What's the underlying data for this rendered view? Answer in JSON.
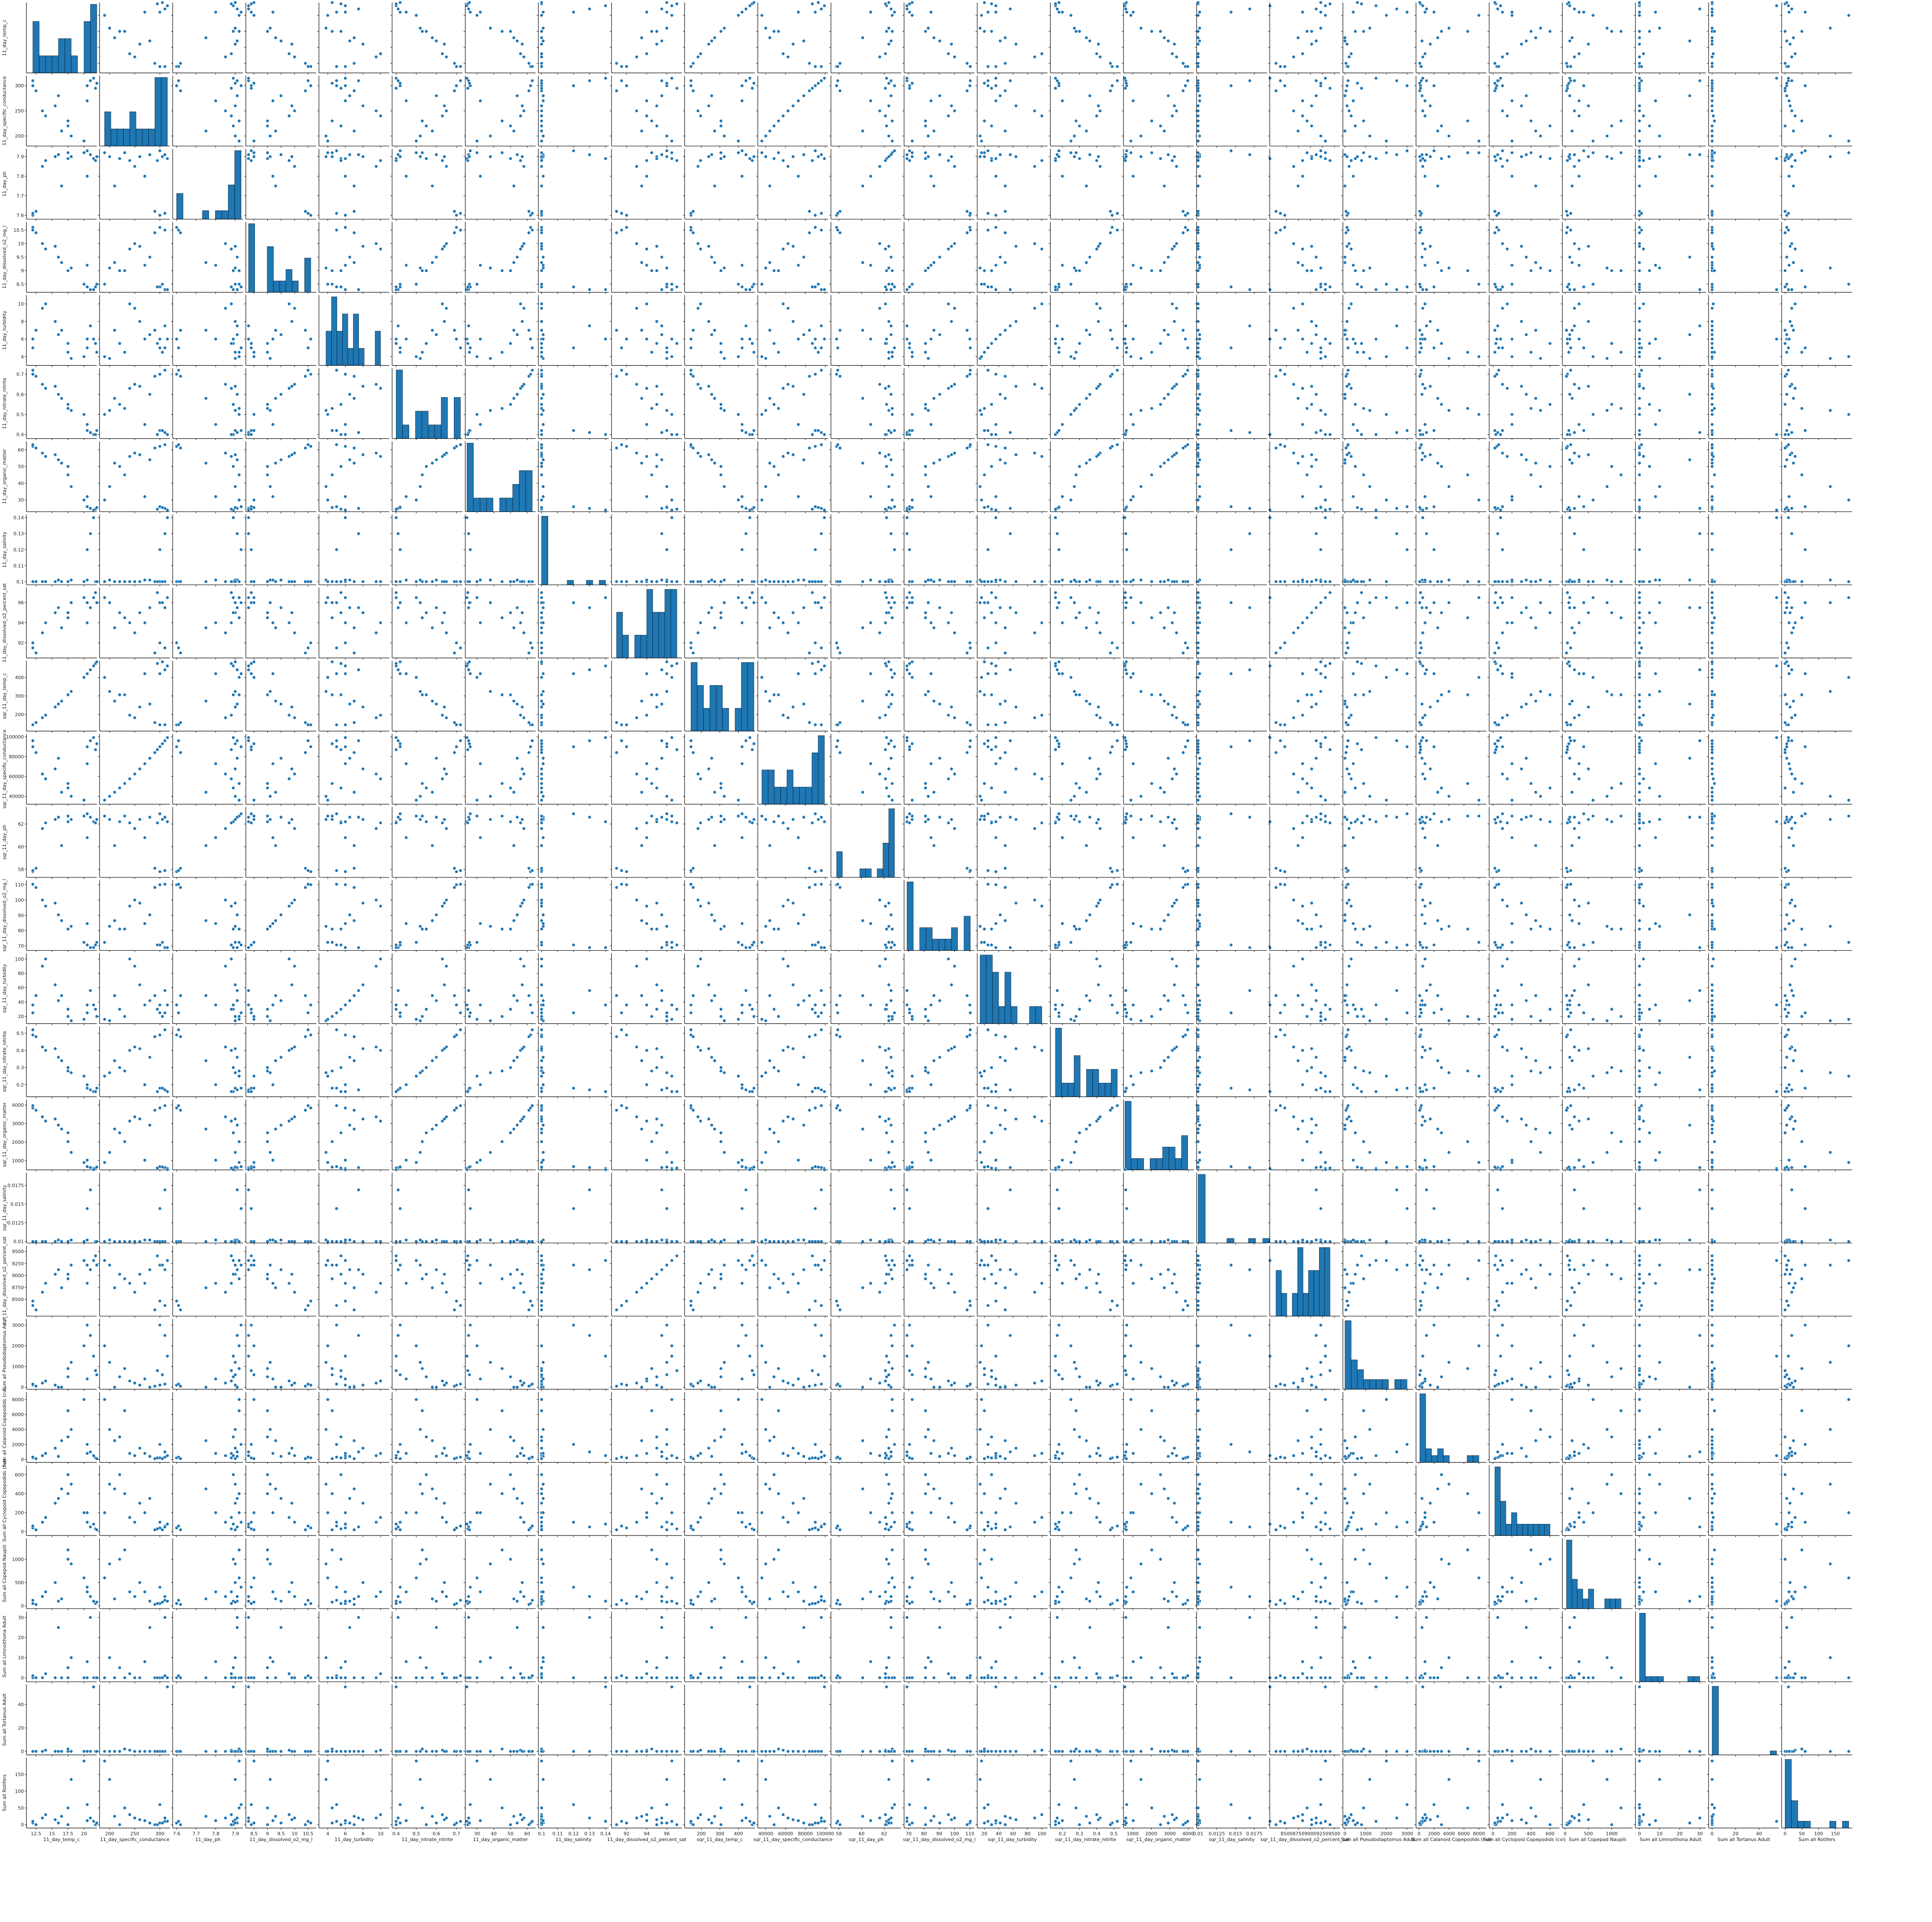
{
  "chart_data": {
    "type": "scatter",
    "layout": "pairplot",
    "variables": [
      "11_day_temp_c",
      "11_day_specific_conductance",
      "11_day_ph",
      "11_day_dissolved_o2_mg_l",
      "11_day_turbidity",
      "11_day_nitrate_nitrite",
      "11_day_organic_matter",
      "11_day_salinity",
      "11_day_dissolved_o2_percent_sat",
      "sqr_11_day_temp_c",
      "sqr_11_day_specific_conductance",
      "sqr_11_day_ph",
      "sqr_11_day_dissolved_o2_mg_l",
      "sqr_11_day_turbidity",
      "sqr_11_day_nitrate_nitrite",
      "sqr_11_day_organic_matter",
      "sqr_11_day_salinity",
      "sqr_11_day_dissolved_o2_percent_sat",
      "Sum all Pseudodiaptomus Adult",
      "Sum all Calanoid Copepodids (cvi)",
      "Sum all Cyclopoid Copepodids (cvi)",
      "Sum all Copepod Nauplii",
      "Sum all Limnoithona Adult",
      "Sum all Tortanus Adult",
      "Sum all Rotifers"
    ],
    "ticks": [
      [
        12.5,
        15.0,
        17.5,
        20.0
      ],
      [
        200,
        250,
        300
      ],
      [
        7.6,
        7.7,
        7.8,
        7.9
      ],
      [
        8.5,
        9.0,
        9.5,
        10.0,
        10.5
      ],
      [
        4,
        6,
        8,
        10
      ],
      [
        0.4,
        0.5,
        0.6,
        0.7
      ],
      [
        30,
        40,
        50,
        60
      ],
      [
        0.1,
        0.11,
        0.12,
        0.13,
        0.14
      ],
      [
        92,
        94,
        96
      ],
      [
        200,
        300,
        400
      ],
      [
        40000,
        60000,
        80000,
        100000
      ],
      [
        58,
        60,
        62
      ],
      [
        70,
        80,
        90,
        100,
        110
      ],
      [
        20,
        40,
        60,
        80,
        100
      ],
      [
        0.2,
        0.3,
        0.4,
        0.5
      ],
      [
        1000,
        2000,
        3000,
        4000
      ],
      [
        0.01,
        0.0125,
        0.015,
        0.0175
      ],
      [
        8500,
        8750,
        9000,
        9250,
        9500
      ],
      [
        0,
        1000,
        2000,
        3000
      ],
      [
        0,
        2000,
        4000,
        6000,
        8000
      ],
      [
        0,
        200,
        400,
        600
      ],
      [
        0,
        500,
        1000
      ],
      [
        0,
        10,
        20,
        30
      ],
      [
        0,
        20,
        40
      ],
      [
        0,
        50,
        100,
        150
      ]
    ],
    "ranges": [
      [
        11.0,
        22.0
      ],
      [
        180,
        320
      ],
      [
        7.58,
        7.94
      ],
      [
        8.2,
        10.8
      ],
      [
        3,
        11
      ],
      [
        0.38,
        0.73
      ],
      [
        23,
        65
      ],
      [
        0.098,
        0.142
      ],
      [
        90.5,
        97.5
      ],
      [
        110,
        490
      ],
      [
        32000,
        103000
      ],
      [
        57.3,
        63.5
      ],
      [
        67,
        113
      ],
      [
        10,
        108
      ],
      [
        0.13,
        0.54
      ],
      [
        500,
        4300
      ],
      [
        0.0098,
        0.0192
      ],
      [
        8150,
        9620
      ],
      [
        -100,
        3300
      ],
      [
        -400,
        9000
      ],
      [
        -40,
        700
      ],
      [
        -60,
        1450
      ],
      [
        -2,
        33
      ],
      [
        -3,
        57
      ],
      [
        -10,
        200
      ]
    ],
    "observations": [
      [
        12.0,
        300,
        7.6,
        10.6,
        6.0,
        0.7,
        62.0,
        0.1,
        92.0,
        144,
        90000,
        57.8,
        110.0,
        36,
        0.49,
        3844,
        0.01,
        8464,
        100,
        200,
        40,
        50,
        0,
        0,
        5
      ],
      [
        12.0,
        310,
        7.61,
        10.5,
        5.0,
        0.72,
        63.0,
        0.1,
        91.5,
        144,
        96100,
        57.9,
        110.3,
        25,
        0.52,
        3969,
        0.01,
        8372,
        150,
        300,
        60,
        120,
        1,
        0,
        10
      ],
      [
        12.5,
        290,
        7.62,
        10.4,
        7.0,
        0.69,
        61.0,
        0.1,
        91.0,
        156,
        84100,
        58.1,
        108.2,
        49,
        0.48,
        3721,
        0.01,
        8281,
        50,
        100,
        20,
        30,
        0,
        0,
        0
      ],
      [
        13.5,
        250,
        7.85,
        10.0,
        9.5,
        0.65,
        58.0,
        0.1,
        93.0,
        182,
        62500,
        61.6,
        100.0,
        90,
        0.42,
        3364,
        0.01,
        8649,
        200,
        500,
        100,
        200,
        0,
        0,
        20
      ],
      [
        14.0,
        240,
        7.88,
        9.8,
        10.0,
        0.63,
        56.0,
        0.1,
        94.0,
        196,
        57600,
        62.1,
        96.0,
        100,
        0.4,
        3136,
        0.01,
        8836,
        300,
        800,
        150,
        300,
        2,
        1,
        30
      ],
      [
        15.5,
        260,
        7.9,
        9.9,
        8.0,
        0.64,
        57.0,
        0.1,
        95.0,
        240,
        67600,
        62.4,
        98.0,
        64,
        0.41,
        3249,
        0.01,
        9025,
        100,
        1500,
        300,
        500,
        0,
        0,
        15
      ],
      [
        16.0,
        280,
        7.91,
        9.5,
        6.5,
        0.6,
        54.0,
        0.101,
        95.5,
        256,
        78400,
        62.6,
        90.3,
        42,
        0.36,
        2916,
        0.0102,
        9120,
        0,
        400,
        350,
        100,
        25,
        0,
        5
      ],
      [
        17.5,
        220,
        7.89,
        9.0,
        5.5,
        0.55,
        50.0,
        0.1,
        95.0,
        306,
        48400,
        62.2,
        81.0,
        30,
        0.3,
        2500,
        0.01,
        9025,
        500,
        3000,
        600,
        1000,
        5,
        0,
        0
      ],
      [
        17.5,
        230,
        7.92,
        9.0,
        4.5,
        0.53,
        45.0,
        0.1,
        94.5,
        306,
        52900,
        62.7,
        81.0,
        20,
        0.28,
        2025,
        0.01,
        8930,
        900,
        6500,
        400,
        1200,
        0,
        2,
        50
      ],
      [
        18.0,
        200,
        7.9,
        9.1,
        3.8,
        0.52,
        38.0,
        0.101,
        96.0,
        324,
        40000,
        62.4,
        82.8,
        14,
        0.27,
        1444,
        0.0102,
        9216,
        1200,
        4000,
        500,
        900,
        10,
        0,
        135
      ],
      [
        20.0,
        190,
        7.92,
        8.5,
        4.0,
        0.5,
        30.0,
        0.1,
        96.5,
        400,
        36100,
        62.7,
        72.3,
        16,
        0.25,
        900,
        0.01,
        9312,
        2000,
        8000,
        200,
        600,
        0,
        0,
        190
      ],
      [
        20.5,
        300,
        7.93,
        8.4,
        5.0,
        0.42,
        26.0,
        0.12,
        96.0,
        420,
        90000,
        62.9,
        70.6,
        25,
        0.18,
        676,
        0.0144,
        9216,
        3000,
        2000,
        100,
        400,
        0,
        0,
        60
      ],
      [
        21.0,
        310,
        7.91,
        8.3,
        7.5,
        0.41,
        25.0,
        0.13,
        95.5,
        441,
        96100,
        62.6,
        68.9,
        56,
        0.17,
        625,
        0.0169,
        9120,
        2500,
        1000,
        50,
        200,
        30,
        0,
        20
      ],
      [
        21.5,
        315,
        7.89,
        8.3,
        6.0,
        0.4,
        24.0,
        0.14,
        96.5,
        462,
        99225,
        62.2,
        68.9,
        36,
        0.16,
        576,
        0.0196,
        9312,
        1500,
        500,
        80,
        100,
        0,
        55,
        10
      ],
      [
        21.8,
        295,
        7.88,
        8.4,
        5.5,
        0.4,
        24.5,
        0.1,
        97.0,
        475,
        87025,
        62.1,
        70.6,
        30,
        0.16,
        600,
        0.01,
        9409,
        800,
        200,
        30,
        50,
        0,
        0,
        0
      ],
      [
        22.0,
        305,
        7.9,
        8.5,
        4.5,
        0.42,
        25.5,
        0.1,
        96.0,
        484,
        93025,
        62.4,
        72.3,
        20,
        0.18,
        650,
        0.01,
        9216,
        600,
        100,
        20,
        80,
        0,
        0,
        5
      ],
      [
        20.5,
        270,
        7.8,
        9.2,
        6.0,
        0.45,
        32.0,
        0.101,
        94.0,
        420,
        72900,
        60.8,
        84.6,
        36,
        0.2,
        1024,
        0.0102,
        8836,
        400,
        800,
        200,
        300,
        8,
        0,
        12
      ],
      [
        16.5,
        210,
        7.75,
        9.3,
        7.0,
        0.58,
        52.0,
        0.1,
        93.5,
        272,
        44100,
        60.1,
        86.5,
        49,
        0.34,
        2704,
        0.01,
        8742,
        0,
        2500,
        450,
        150,
        0,
        0,
        25
      ]
    ]
  }
}
